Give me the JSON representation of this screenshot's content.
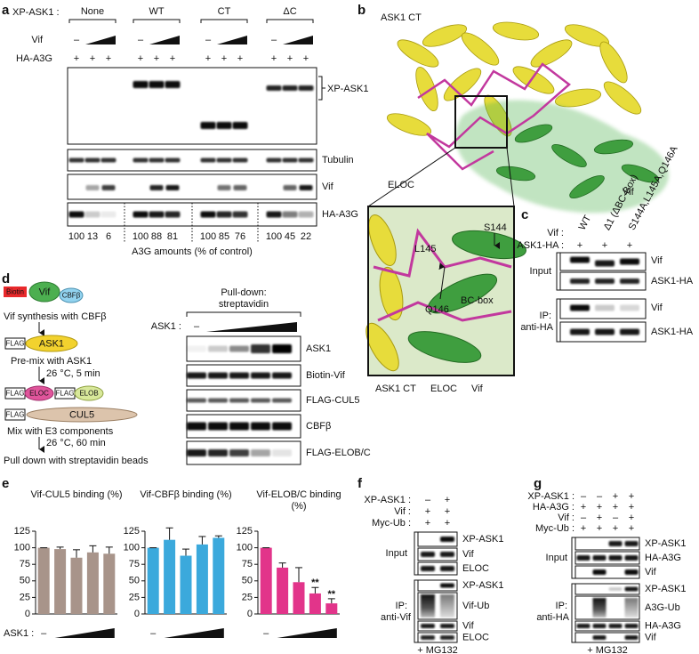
{
  "panel_a": {
    "label": "a",
    "xp_ask1": "XP-ASK1 :",
    "groups": [
      "None",
      "WT",
      "CT",
      "ΔC"
    ],
    "vif": "Vif",
    "vif_signs": [
      "–",
      "–",
      "–",
      "–"
    ],
    "ha_a3g": "HA-A3G",
    "ha_a3g_signs": [
      "+",
      "+",
      "+",
      "+",
      "+",
      "+",
      "+",
      "+",
      "+",
      "+",
      "+",
      "+"
    ],
    "blot_labels": [
      "XP-ASK1",
      "Tubulin",
      "Vif",
      "HA-A3G"
    ],
    "a3g_amounts": [
      100,
      13,
      6,
      100,
      88,
      81,
      100,
      85,
      76,
      100,
      45,
      22
    ],
    "a3g_amounts_caption": "A3G amounts (% of control)"
  },
  "panel_b": {
    "label": "b",
    "ask1_ct": "ASK1 CT",
    "eloc": "ELOC",
    "vif": "Vif",
    "inset_residues": [
      "S144",
      "L145",
      "Q146"
    ],
    "bc_box": "BC-box",
    "inset_legend": [
      "ASK1 CT",
      "ELOC",
      "Vif"
    ]
  },
  "panel_c": {
    "label": "c",
    "vif_row": "Vif :",
    "columns": [
      "WT",
      "Δ1 (ΔBC-Box)",
      "S144A,L145A,Q146A"
    ],
    "ask1_row": "ASK1-HA :",
    "ask1_signs": [
      "+",
      "+",
      "+"
    ],
    "input": "Input",
    "ip": "IP:",
    "ip_antibody": "anti-HA",
    "input_blots": [
      "Vif",
      "ASK1-HA"
    ],
    "ip_blots": [
      "Vif",
      "ASK1-HA"
    ]
  },
  "panel_d": {
    "label": "d",
    "biotin": "Biotin",
    "vif": "Vif",
    "cbfb": "CBFβ",
    "flag": "FLAG",
    "ask1": "ASK1",
    "eloc": "ELOC",
    "elob": "ELOB",
    "cul5": "CUL5",
    "steps": [
      "Vif synthesis with CBFβ",
      "Pre-mix with ASK1",
      "Mix with E3 components",
      "Pull down with streptavidin beads"
    ],
    "conditions": [
      "26 °C, 5 min",
      "26 °C, 60 min"
    ],
    "pulldown": "Pull-down:",
    "pulldown_reagent": "streptavidin",
    "ask1_row": "ASK1 :",
    "ask1_minus": "–",
    "blots": [
      "ASK1",
      "Biotin-Vif",
      "FLAG-CUL5",
      "CBFβ",
      "FLAG-ELOB/C"
    ]
  },
  "panel_e": {
    "label": "e",
    "x_label": "ASK1 :"
  },
  "chart_data": [
    {
      "type": "bar",
      "title": "Vif-CUL5 binding (%)",
      "categories": [
        "–",
        null,
        null,
        null,
        null
      ],
      "values": [
        100,
        98,
        85,
        93,
        91
      ],
      "errors": [
        0,
        3,
        12,
        10,
        10
      ],
      "annotations": [
        null,
        null,
        null,
        null,
        null
      ],
      "color": "#a8948a",
      "ylim": [
        0,
        125
      ],
      "yticks": [
        0,
        25,
        50,
        75,
        100,
        125
      ],
      "grid": false
    },
    {
      "type": "bar",
      "title": "Vif-CBFβ binding (%)",
      "categories": [
        "–",
        null,
        null,
        null,
        null
      ],
      "values": [
        100,
        112,
        88,
        105,
        115
      ],
      "errors": [
        0,
        18,
        10,
        12,
        3
      ],
      "annotations": [
        null,
        null,
        null,
        null,
        null
      ],
      "color": "#3ba9dc",
      "ylim": [
        0,
        125
      ],
      "yticks": [
        0,
        25,
        50,
        75,
        100,
        125
      ],
      "grid": false
    },
    {
      "type": "bar",
      "title": "Vif-ELOB/C binding (%)",
      "categories": [
        "–",
        null,
        null,
        null,
        null
      ],
      "values": [
        100,
        70,
        48,
        31,
        16
      ],
      "errors": [
        0,
        7,
        22,
        9,
        7
      ],
      "annotations": [
        null,
        null,
        null,
        "**",
        "**"
      ],
      "color": "#e2348a",
      "ylim": [
        0,
        125
      ],
      "yticks": [
        0,
        25,
        50,
        75,
        100,
        125
      ],
      "grid": false
    }
  ],
  "panel_f": {
    "label": "f",
    "rows": [
      {
        "label": "XP-ASK1 :",
        "signs": [
          "–",
          "+"
        ]
      },
      {
        "label": "Vif :",
        "signs": [
          "+",
          "+"
        ]
      },
      {
        "label": "Myc-Ub :",
        "signs": [
          "+",
          "+"
        ]
      }
    ],
    "input": "Input",
    "input_blots": [
      "XP-ASK1",
      "Vif",
      "ELOC"
    ],
    "ip": "IP:",
    "ip_antibody": "anti-Vif",
    "ip_blots": [
      "XP-ASK1",
      "Vif-Ub",
      "Vif",
      "ELOC"
    ],
    "treatment": "+ MG132"
  },
  "panel_g": {
    "label": "g",
    "rows": [
      {
        "label": "XP-ASK1 :",
        "signs": [
          "–",
          "–",
          "+",
          "+"
        ]
      },
      {
        "label": "HA-A3G :",
        "signs": [
          "+",
          "+",
          "+",
          "+"
        ]
      },
      {
        "label": "Vif :",
        "signs": [
          "–",
          "+",
          "–",
          "+"
        ]
      },
      {
        "label": "Myc-Ub :",
        "signs": [
          "+",
          "+",
          "+",
          "+"
        ]
      }
    ],
    "input": "Input",
    "input_blots": [
      "XP-ASK1",
      "HA-A3G",
      "Vif"
    ],
    "ip": "IP:",
    "ip_antibody": "anti-HA",
    "ip_blots": [
      "XP-ASK1",
      "A3G-Ub",
      "HA-A3G",
      "Vif"
    ],
    "treatment": "+ MG132"
  }
}
